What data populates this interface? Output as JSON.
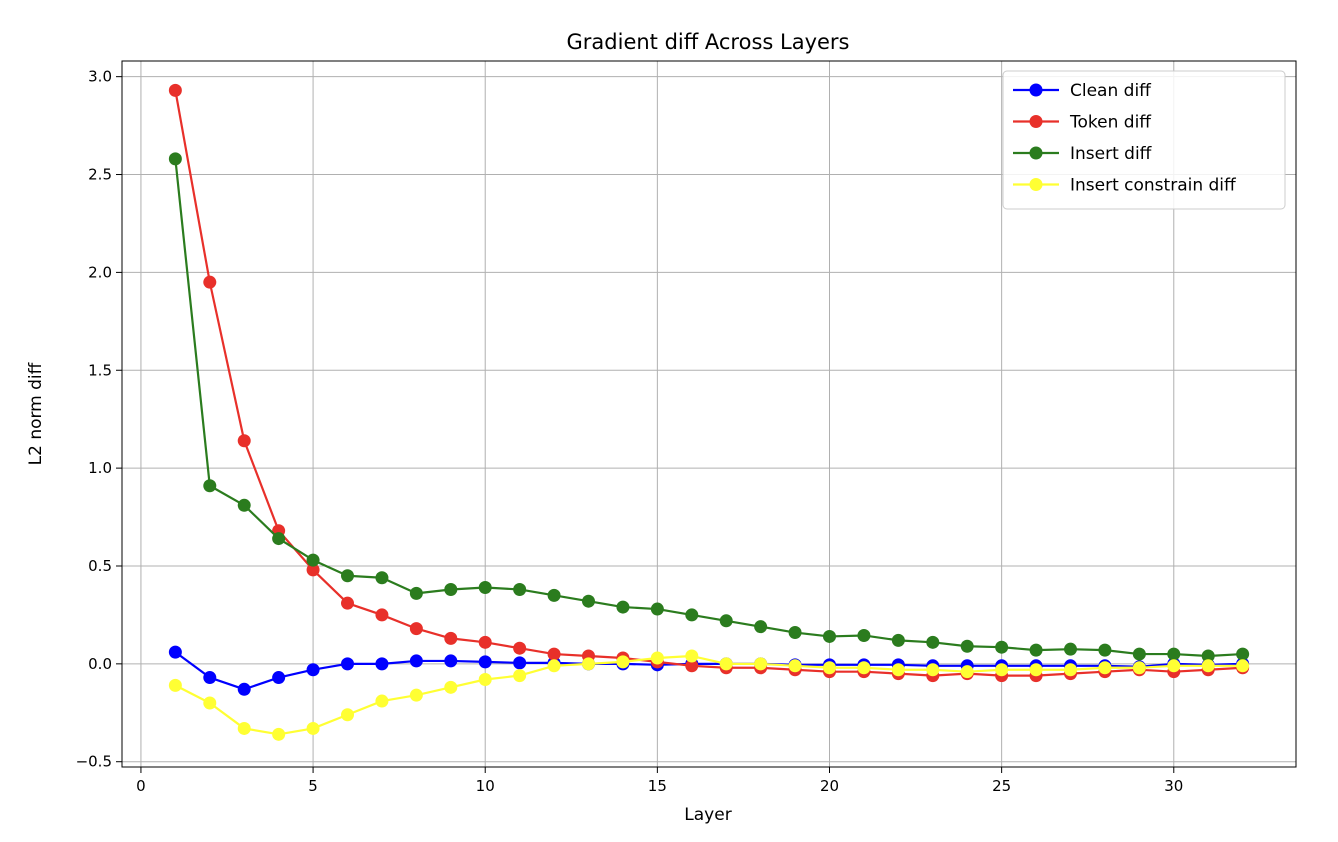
{
  "chart_data": {
    "type": "line",
    "title": "Gradient diff Across Layers",
    "xlabel": "Layer",
    "ylabel": "L2 norm diff",
    "xlim": [
      -0.55,
      33.55
    ],
    "ylim": [
      -0.527,
      3.08
    ],
    "xticks": [
      0,
      5,
      10,
      15,
      20,
      25,
      30
    ],
    "xtick_labels": [
      "0",
      "5",
      "10",
      "15",
      "20",
      "25",
      "30"
    ],
    "yticks": [
      -0.5,
      0.0,
      0.5,
      1.0,
      1.5,
      2.0,
      2.5,
      3.0
    ],
    "ytick_labels": [
      "−0.5",
      "0.0",
      "0.5",
      "1.0",
      "1.5",
      "2.0",
      "2.5",
      "3.0"
    ],
    "grid": true,
    "legend_position": "top-right",
    "x": [
      1,
      2,
      3,
      4,
      5,
      6,
      7,
      8,
      9,
      10,
      11,
      12,
      13,
      14,
      15,
      16,
      17,
      18,
      19,
      20,
      21,
      22,
      23,
      24,
      25,
      26,
      27,
      28,
      29,
      30,
      31,
      32
    ],
    "series": [
      {
        "name": "Clean diff",
        "color": "#0000ff",
        "values": [
          0.06,
          -0.07,
          -0.13,
          -0.07,
          -0.03,
          0.0,
          0.0,
          0.015,
          0.015,
          0.01,
          0.005,
          0.005,
          0.0,
          0.0,
          -0.005,
          0.0,
          0.0,
          0.0,
          -0.005,
          -0.005,
          -0.005,
          -0.005,
          -0.01,
          -0.01,
          -0.01,
          -0.01,
          -0.01,
          -0.01,
          -0.015,
          0.0,
          -0.005,
          0.0
        ]
      },
      {
        "name": "Token diff",
        "color": "#e8302a",
        "values": [
          2.93,
          1.95,
          1.14,
          0.68,
          0.48,
          0.31,
          0.25,
          0.18,
          0.13,
          0.11,
          0.08,
          0.05,
          0.04,
          0.03,
          0.01,
          -0.01,
          -0.02,
          -0.02,
          -0.03,
          -0.04,
          -0.04,
          -0.05,
          -0.06,
          -0.05,
          -0.06,
          -0.06,
          -0.05,
          -0.04,
          -0.03,
          -0.04,
          -0.03,
          -0.02
        ]
      },
      {
        "name": "Insert diff",
        "color": "#2b7c1e",
        "values": [
          2.58,
          0.91,
          0.81,
          0.64,
          0.53,
          0.45,
          0.44,
          0.36,
          0.38,
          0.39,
          0.38,
          0.35,
          0.32,
          0.29,
          0.28,
          0.25,
          0.22,
          0.19,
          0.16,
          0.14,
          0.145,
          0.12,
          0.11,
          0.09,
          0.085,
          0.07,
          0.075,
          0.07,
          0.05,
          0.05,
          0.04,
          0.05
        ]
      },
      {
        "name": "Insert constrain diff",
        "color": "#ffff33",
        "values": [
          -0.11,
          -0.2,
          -0.33,
          -0.36,
          -0.33,
          -0.26,
          -0.19,
          -0.16,
          -0.12,
          -0.08,
          -0.06,
          -0.01,
          0.0,
          0.01,
          0.03,
          0.04,
          0.0,
          0.0,
          -0.01,
          -0.02,
          -0.02,
          -0.03,
          -0.03,
          -0.04,
          -0.03,
          -0.03,
          -0.03,
          -0.02,
          -0.02,
          -0.01,
          -0.01,
          -0.01
        ]
      }
    ]
  }
}
